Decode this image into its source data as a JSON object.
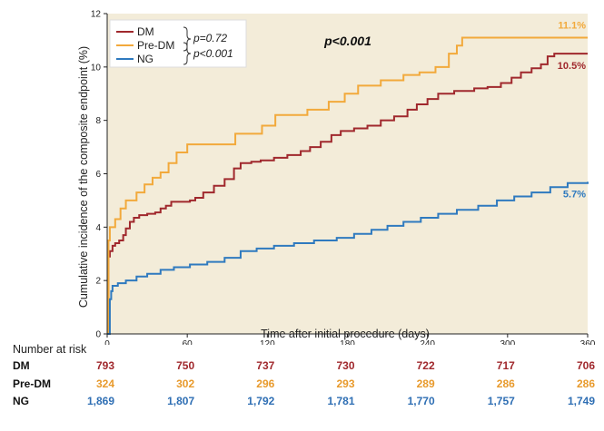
{
  "chart_data": {
    "type": "line",
    "xlabel": "Time after initial procedure (days)",
    "ylabel": "Cumulative incidence of the composite endpoint (%)",
    "xlim": [
      0,
      360
    ],
    "ylim": [
      0,
      12
    ],
    "xticks": [
      0,
      60,
      120,
      180,
      240,
      300,
      360
    ],
    "yticks": [
      0,
      2,
      4,
      6,
      8,
      10,
      12
    ],
    "background": "#f3ecd9",
    "step": true,
    "annotation": "p<0.001",
    "legend": {
      "position": "top-left",
      "pairwise": [
        "p=0.72",
        "p<0.001"
      ]
    },
    "series": [
      {
        "name": "DM",
        "color": "#a0282d",
        "end_label": "10.5%",
        "points": [
          [
            0,
            0
          ],
          [
            1,
            2.9
          ],
          [
            2,
            3.1
          ],
          [
            4,
            3.3
          ],
          [
            6,
            3.4
          ],
          [
            9,
            3.5
          ],
          [
            12,
            3.7
          ],
          [
            14,
            3.95
          ],
          [
            17,
            4.2
          ],
          [
            20,
            4.35
          ],
          [
            24,
            4.45
          ],
          [
            30,
            4.5
          ],
          [
            36,
            4.55
          ],
          [
            40,
            4.7
          ],
          [
            44,
            4.8
          ],
          [
            48,
            4.95
          ],
          [
            54,
            4.95
          ],
          [
            62,
            5.0
          ],
          [
            66,
            5.1
          ],
          [
            72,
            5.3
          ],
          [
            80,
            5.55
          ],
          [
            88,
            5.8
          ],
          [
            95,
            6.2
          ],
          [
            100,
            6.4
          ],
          [
            108,
            6.45
          ],
          [
            115,
            6.5
          ],
          [
            125,
            6.6
          ],
          [
            135,
            6.7
          ],
          [
            145,
            6.85
          ],
          [
            152,
            7.0
          ],
          [
            160,
            7.2
          ],
          [
            168,
            7.45
          ],
          [
            175,
            7.6
          ],
          [
            185,
            7.7
          ],
          [
            195,
            7.8
          ],
          [
            205,
            8.0
          ],
          [
            215,
            8.15
          ],
          [
            225,
            8.4
          ],
          [
            232,
            8.6
          ],
          [
            240,
            8.8
          ],
          [
            248,
            9.0
          ],
          [
            260,
            9.1
          ],
          [
            275,
            9.2
          ],
          [
            285,
            9.25
          ],
          [
            295,
            9.4
          ],
          [
            303,
            9.6
          ],
          [
            310,
            9.8
          ],
          [
            318,
            9.95
          ],
          [
            325,
            10.1
          ],
          [
            330,
            10.4
          ],
          [
            335,
            10.5
          ],
          [
            360,
            10.5
          ]
        ]
      },
      {
        "name": "Pre-DM",
        "color": "#f2a93b",
        "end_label": "11.1%",
        "points": [
          [
            0,
            0
          ],
          [
            1,
            3.5
          ],
          [
            2,
            4.0
          ],
          [
            6,
            4.3
          ],
          [
            10,
            4.7
          ],
          [
            14,
            5.0
          ],
          [
            22,
            5.3
          ],
          [
            28,
            5.6
          ],
          [
            34,
            5.85
          ],
          [
            40,
            6.05
          ],
          [
            46,
            6.4
          ],
          [
            52,
            6.8
          ],
          [
            60,
            7.1
          ],
          [
            80,
            7.1
          ],
          [
            96,
            7.5
          ],
          [
            116,
            7.8
          ],
          [
            126,
            8.2
          ],
          [
            150,
            8.4
          ],
          [
            166,
            8.7
          ],
          [
            178,
            9.0
          ],
          [
            188,
            9.3
          ],
          [
            205,
            9.5
          ],
          [
            222,
            9.7
          ],
          [
            234,
            9.8
          ],
          [
            246,
            10.0
          ],
          [
            256,
            10.5
          ],
          [
            262,
            10.8
          ],
          [
            266,
            11.1
          ],
          [
            360,
            11.1
          ]
        ]
      },
      {
        "name": "NG",
        "color": "#2f7abf",
        "end_label": "5.7%",
        "points": [
          [
            0,
            0
          ],
          [
            2,
            1.3
          ],
          [
            3,
            1.6
          ],
          [
            4,
            1.8
          ],
          [
            8,
            1.9
          ],
          [
            14,
            2.0
          ],
          [
            22,
            2.15
          ],
          [
            30,
            2.25
          ],
          [
            40,
            2.4
          ],
          [
            50,
            2.5
          ],
          [
            62,
            2.6
          ],
          [
            75,
            2.7
          ],
          [
            88,
            2.85
          ],
          [
            100,
            3.1
          ],
          [
            112,
            3.2
          ],
          [
            125,
            3.3
          ],
          [
            140,
            3.4
          ],
          [
            155,
            3.5
          ],
          [
            172,
            3.6
          ],
          [
            185,
            3.75
          ],
          [
            198,
            3.9
          ],
          [
            210,
            4.05
          ],
          [
            222,
            4.2
          ],
          [
            235,
            4.35
          ],
          [
            248,
            4.5
          ],
          [
            262,
            4.65
          ],
          [
            278,
            4.8
          ],
          [
            292,
            5.0
          ],
          [
            305,
            5.15
          ],
          [
            318,
            5.3
          ],
          [
            332,
            5.5
          ],
          [
            345,
            5.65
          ],
          [
            360,
            5.7
          ]
        ]
      }
    ]
  },
  "risk_table": {
    "title": "Number at risk",
    "timepoints": [
      0,
      60,
      120,
      180,
      240,
      300,
      360
    ],
    "rows": [
      {
        "name": "DM",
        "color": "#a0282d",
        "values": [
          "793",
          "750",
          "737",
          "730",
          "722",
          "717",
          "706"
        ]
      },
      {
        "name": "Pre-DM",
        "color": "#e89a2c",
        "values": [
          "324",
          "302",
          "296",
          "293",
          "289",
          "286",
          "286"
        ]
      },
      {
        "name": "NG",
        "color": "#2f6fb4",
        "values": [
          "1,869",
          "1,807",
          "1,792",
          "1,781",
          "1,770",
          "1,757",
          "1,749"
        ]
      }
    ]
  }
}
